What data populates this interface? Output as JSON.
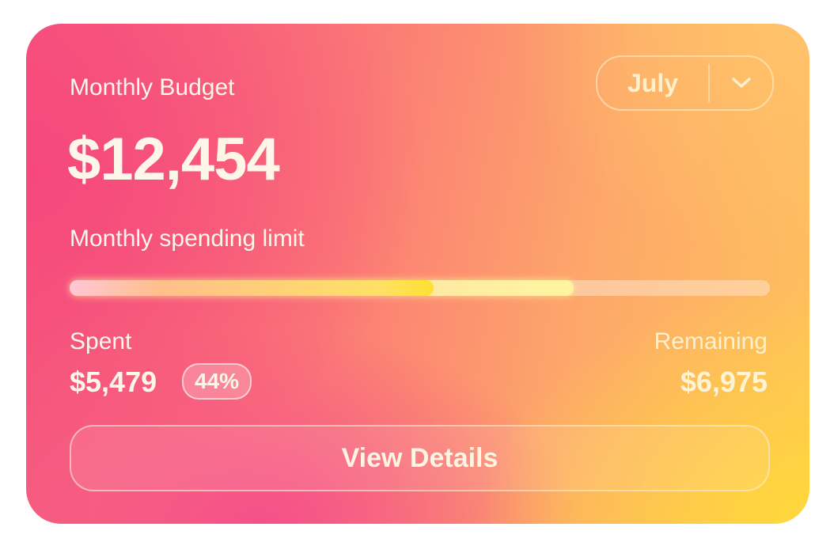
{
  "card": {
    "title": "Monthly Budget",
    "amount": "$12,454",
    "limit_label": "Monthly spending limit",
    "month_selector": {
      "value": "July",
      "icon": "chevron-down-icon"
    },
    "spent": {
      "label": "Spent",
      "value": "$5,479",
      "percent": "44%"
    },
    "remaining": {
      "label": "Remaining",
      "value": "$6,975"
    },
    "button_label": "View Details"
  }
}
